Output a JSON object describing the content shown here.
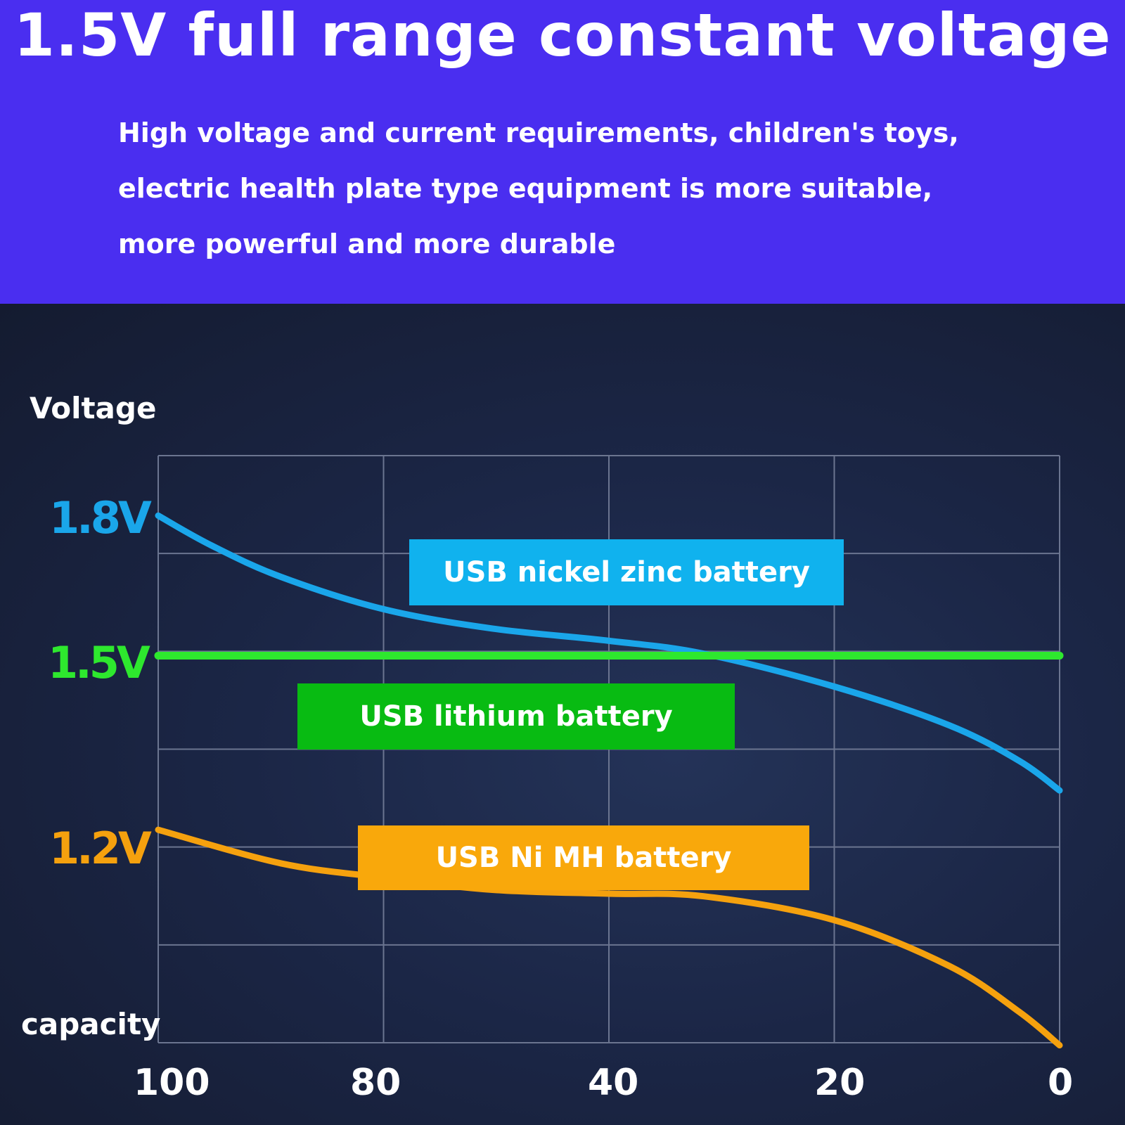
{
  "header": {
    "title": "1.5V full range constant voltage",
    "subtitle_lines": [
      "High voltage and current requirements, children's toys,",
      "electric health plate type equipment is more suitable,",
      "more powerful and more durable"
    ],
    "background_color": "#4a2ef0"
  },
  "chart_data": {
    "type": "line",
    "ylabel": "Voltage",
    "xlabel": "capacity",
    "x_ticks": [
      100,
      80,
      40,
      20,
      0
    ],
    "x_tick_labels": [
      "100",
      "80",
      "40",
      "20",
      "0"
    ],
    "y_tick_labels": [
      {
        "label": "1.8V",
        "color": "#1aa6ea"
      },
      {
        "label": "1.5V",
        "color": "#2ee82e"
      },
      {
        "label": "1.2V",
        "color": "#f5a10e"
      }
    ],
    "ylim": [
      0.9,
      1.81
    ],
    "grid": true,
    "series": [
      {
        "name": "USB nickel zinc battery",
        "color": "#1aa6ea",
        "label_bg": "#10b2ee",
        "x": [
          100,
          95.3,
          89.1,
          80,
          60.7,
          40,
          31.6,
          20,
          9.8,
          3.6,
          0
        ],
        "y": [
          1.717,
          1.671,
          1.622,
          1.572,
          1.542,
          1.523,
          1.503,
          1.452,
          1.392,
          1.337,
          1.291
        ]
      },
      {
        "name": "USB lithium battery",
        "color": "#2ee82e",
        "label_bg": "#08bb12",
        "x": [
          100,
          0
        ],
        "y": [
          1.5,
          1.5
        ]
      },
      {
        "name": "USB Ni MH battery",
        "color": "#f5a10e",
        "label_bg": "#f9a80b",
        "x": [
          100,
          89.1,
          80,
          60.7,
          40,
          31.6,
          20,
          9.8,
          3.6,
          0
        ],
        "y": [
          1.23,
          1.178,
          1.156,
          1.137,
          1.131,
          1.127,
          1.09,
          1.019,
          0.948,
          0.896
        ]
      }
    ]
  }
}
